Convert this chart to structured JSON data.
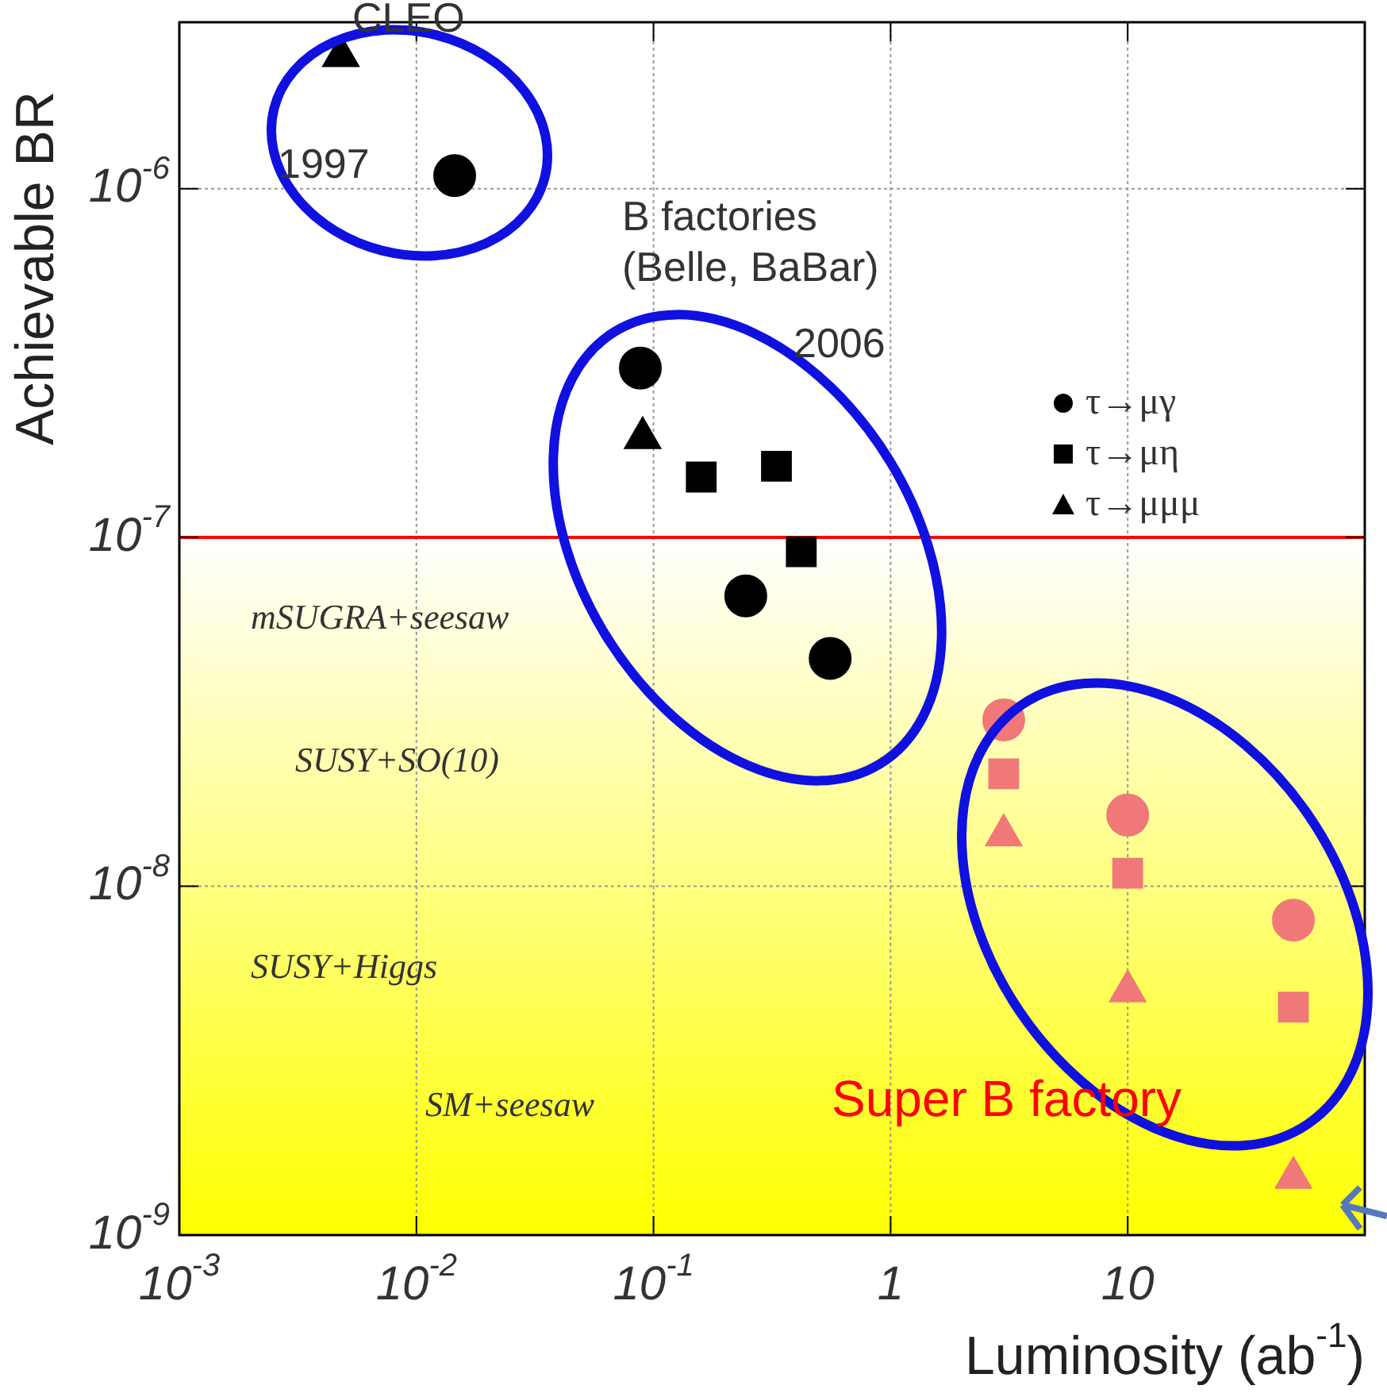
{
  "chart_data": {
    "type": "scatter",
    "xlabel": "Luminosity (ab$^{-1}$)",
    "ylabel": "Achievable BR",
    "log": "xy",
    "grid": true,
    "legend": "top right",
    "xlim": [
      0.001,
      100
    ],
    "ylim": [
      1e-09,
      3e-06
    ],
    "xticks": [
      {
        "value": 0.001,
        "label": "10$^{-3}$"
      },
      {
        "value": 0.01,
        "label": "10$^{-2}$"
      },
      {
        "value": 0.1,
        "label": "10$^{-1}$"
      },
      1,
      10
    ],
    "yticks": [
      {
        "value": 1e-09,
        "label": "10$^{-9}$"
      },
      {
        "value": 1e-08,
        "label": "10$^{-8}$"
      },
      {
        "value": 1e-07,
        "label": "10$^{-7}$"
      },
      {
        "value": 1e-06,
        "label": "10$^{-6}$"
      }
    ],
    "series": [
      {
        "name": "τ→μγ",
        "color": "#000000",
        "marker": "circle",
        "x": [
          0.0145,
          0.088,
          0.245,
          0.556
        ],
        "values": [
          1.09e-06,
          3.06e-07,
          6.8e-08,
          4.5e-08
        ]
      },
      {
        "name": "τ→μη",
        "color": "#000000",
        "marker": "square",
        "x": [
          0.159,
          0.33,
          0.42
        ],
        "values": [
          1.49e-07,
          1.6e-07,
          9.1e-08
        ]
      },
      {
        "name": "τ→μμμ",
        "color": "#000000",
        "marker": "triangle",
        "x": [
          0.0048,
          0.09
        ],
        "values": [
          2.4e-06,
          1.93e-07
        ]
      },
      {
        "color": "#f07878",
        "marker": "circle",
        "x": [
          3,
          10,
          50
        ],
        "values": [
          3e-08,
          1.6e-08,
          8e-09
        ]
      },
      {
        "color": "#f07878",
        "marker": "square",
        "x": [
          3,
          10,
          50
        ],
        "values": [
          2.1e-08,
          1.09e-08,
          4.5e-09
        ]
      },
      {
        "color": "#f07878",
        "marker": "triangle",
        "x": [
          3,
          10,
          50
        ],
        "values": [
          1.4e-08,
          5e-09,
          1.46e-09
        ]
      }
    ],
    "ref_lines": [
      {
        "axis": "y",
        "value": 1e-07,
        "color": "#ff0000"
      }
    ],
    "bands": [
      {
        "axis": "y",
        "from": 1e-09,
        "to": 1e-07,
        "color": "#ffff00"
      }
    ],
    "annotations": [
      "CLEO",
      "1997",
      "B factories",
      "(Belle, BaBar)",
      "2006",
      "mSUGRA+seesaw",
      "SUSY+SO(10)",
      "SUSY+Higgs",
      "SM+seesaw",
      "Super B factory"
    ]
  }
}
